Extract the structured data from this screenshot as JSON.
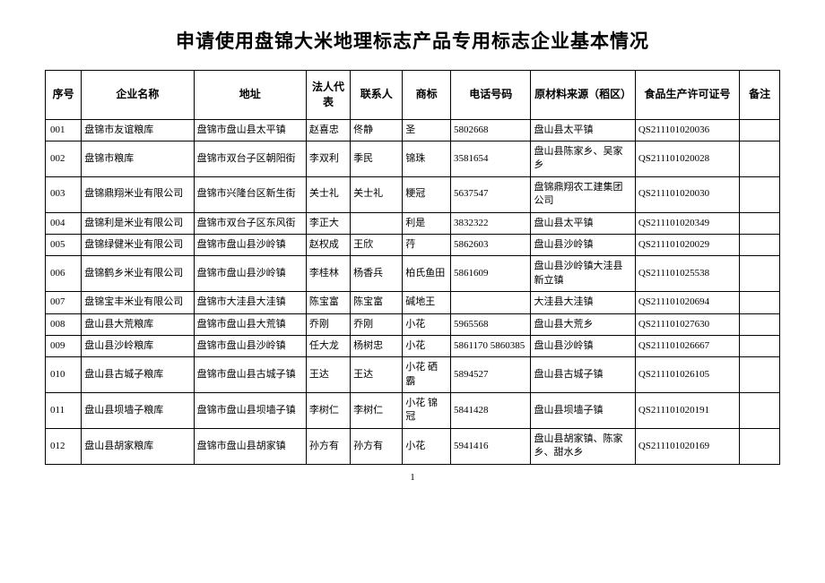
{
  "title": "申请使用盘锦大米地理标志产品专用标志企业基本情况",
  "page_number": "1",
  "columns": [
    "序号",
    "企业名称",
    "地址",
    "法人代表",
    "联系人",
    "商标",
    "电话号码",
    "原材料来源（稻区）",
    "食品生产许可证号",
    "备注"
  ],
  "rows": [
    {
      "seq": "001",
      "company": "盘锦市友谊粮库",
      "address": "盘锦市盘山县太平镇",
      "legal": "赵喜忠",
      "contact": "佟静",
      "trademark": "圣",
      "phone": "5802668",
      "source": "盘山县太平镇",
      "license": "QS211101020036",
      "remark": ""
    },
    {
      "seq": "002",
      "company": "盘锦市粮库",
      "address": "盘锦市双台子区朝阳街",
      "legal": "李双利",
      "contact": "季民",
      "trademark": "锦珠",
      "phone": "3581654",
      "source": "盘山县陈家乡、吴家乡",
      "license": "QS211101020028",
      "remark": ""
    },
    {
      "seq": "003",
      "company": "盘锦鼎翔米业有限公司",
      "address": "盘锦市兴隆台区新生街",
      "legal": "关士礼",
      "contact": "关士礼",
      "trademark": "粳冠",
      "phone": "5637547",
      "source": "盘锦鼎翔农工建集团公司",
      "license": "QS211101020030",
      "remark": ""
    },
    {
      "seq": "004",
      "company": "盘锦利是米业有限公司",
      "address": "盘锦市双台子区东风街",
      "legal": "李正大",
      "contact": "",
      "trademark": "利是",
      "phone": "3832322",
      "source": "盘山县太平镇",
      "license": "QS211101020349",
      "remark": ""
    },
    {
      "seq": "005",
      "company": "盘锦绿健米业有限公司",
      "address": "盘锦市盘山县沙岭镇",
      "legal": "赵权成",
      "contact": "王欣",
      "trademark": "荇",
      "phone": "5862603",
      "source": "盘山县沙岭镇",
      "license": "QS211101020029",
      "remark": ""
    },
    {
      "seq": "006",
      "company": "盘锦鹤乡米业有限公司",
      "address": "盘锦市盘山县沙岭镇",
      "legal": "李桂林",
      "contact": "杨香兵",
      "trademark": "柏氏鱼田",
      "phone": "5861609",
      "source": "盘山县沙岭镇大洼县新立镇",
      "license": "QS211101025538",
      "remark": ""
    },
    {
      "seq": "007",
      "company": "盘锦宝丰米业有限公司",
      "address": "盘锦市大洼县大洼镇",
      "legal": "陈宝富",
      "contact": "陈宝富",
      "trademark": "碱地王",
      "phone": "",
      "source": "大洼县大洼镇",
      "license": "QS211101020694",
      "remark": ""
    },
    {
      "seq": "008",
      "company": "盘山县大荒粮库",
      "address": "盘锦市盘山县大荒镇",
      "legal": "乔刚",
      "contact": "乔刚",
      "trademark": "小花",
      "phone": "5965568",
      "source": "盘山县大荒乡",
      "license": "QS211101027630",
      "remark": ""
    },
    {
      "seq": "009",
      "company": "盘山县沙岭粮库",
      "address": "盘锦市盘山县沙岭镇",
      "legal": "任大龙",
      "contact": "杨树忠",
      "trademark": "小花",
      "phone": "5861170 5860385",
      "source": "盘山县沙岭镇",
      "license": "QS211101026667",
      "remark": ""
    },
    {
      "seq": "010",
      "company": "盘山县古城子粮库",
      "address": "盘锦市盘山县古城子镇",
      "legal": "王达",
      "contact": "王达",
      "trademark": "小花 硒霸",
      "phone": "5894527",
      "source": "盘山县古城子镇",
      "license": "QS211101026105",
      "remark": ""
    },
    {
      "seq": "011",
      "company": "盘山县坝墙子粮库",
      "address": "盘锦市盘山县坝墙子镇",
      "legal": "李树仁",
      "contact": "李树仁",
      "trademark": "小花 锦冠",
      "phone": "5841428",
      "source": "盘山县坝墙子镇",
      "license": "QS211101020191",
      "remark": ""
    },
    {
      "seq": "012",
      "company": "盘山县胡家粮库",
      "address": "盘锦市盘山县胡家镇",
      "legal": "孙方有",
      "contact": "孙方有",
      "trademark": "小花",
      "phone": "5941416",
      "source": "盘山县胡家镇、陈家乡、甜水乡",
      "license": "QS211101020169",
      "remark": ""
    }
  ]
}
